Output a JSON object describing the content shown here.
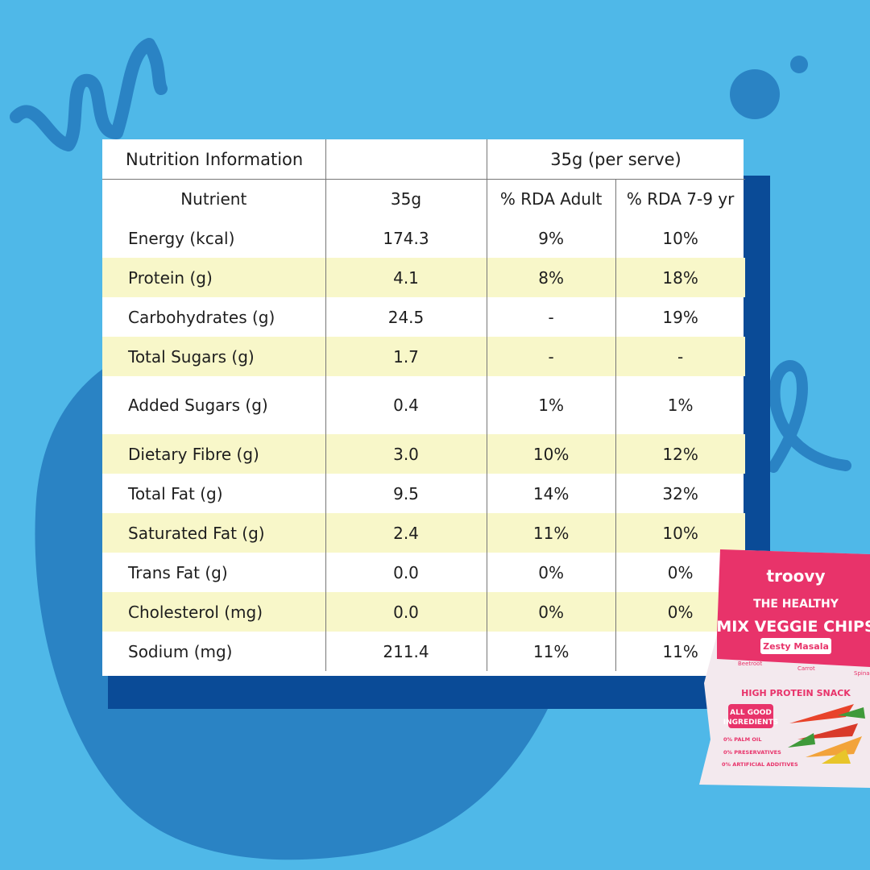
{
  "table": {
    "title": "Nutrition Information",
    "serve_header": "35g (per serve)",
    "columns": [
      "Nutrient",
      "35g",
      "% RDA Adult",
      "% RDA 7-9 yr"
    ],
    "rows": [
      {
        "nutrient": "Energy (kcal)",
        "amount": "174.3",
        "rda_adult": "9%",
        "rda_child": "10%"
      },
      {
        "nutrient": "Protein (g)",
        "amount": "4.1",
        "rda_adult": "8%",
        "rda_child": "18%"
      },
      {
        "nutrient": "Carbohydrates (g)",
        "amount": "24.5",
        "rda_adult": "-",
        "rda_child": "19%"
      },
      {
        "nutrient": "Total Sugars (g)",
        "amount": "1.7",
        "rda_adult": "-",
        "rda_child": "-"
      },
      {
        "nutrient": "Added Sugars (g)",
        "amount": "0.4",
        "rda_adult": "1%",
        "rda_child": "1%"
      },
      {
        "nutrient": "Dietary Fibre (g)",
        "amount": "3.0",
        "rda_adult": "10%",
        "rda_child": "12%"
      },
      {
        "nutrient": "Total Fat (g)",
        "amount": "9.5",
        "rda_adult": "14%",
        "rda_child": "32%"
      },
      {
        "nutrient": "Saturated Fat (g)",
        "amount": "2.4",
        "rda_adult": "11%",
        "rda_child": "10%"
      },
      {
        "nutrient": "Trans Fat (g)",
        "amount": "0.0",
        "rda_adult": "0%",
        "rda_child": "0%"
      },
      {
        "nutrient": "Cholesterol (mg)",
        "amount": "0.0",
        "rda_adult": "0%",
        "rda_child": "0%"
      },
      {
        "nutrient": "Sodium (mg)",
        "amount": "211.4",
        "rda_adult": "11%",
        "rda_child": "11%"
      }
    ]
  },
  "package": {
    "brand": "troovy",
    "tagline": "THE HEALTHY",
    "product": "MIX VEGGIE CHIPS",
    "flavour": "Zesty Masala",
    "veggies": [
      "Beetroot",
      "Carrot",
      "Spinach"
    ],
    "badge": "HIGH PROTEIN SNACK",
    "callout_1": "ALL GOOD",
    "callout_2": "INGREDIENTS",
    "claims": [
      "0% PALM OIL",
      "0% PRESERVATIVES",
      "0% ARTIFICIAL ADDITIVES"
    ]
  },
  "colors": {
    "background": "#4fb8e8",
    "blob": "#2a83c4",
    "shadow_box": "#0a4b97",
    "row_highlight": "#f8f7c9",
    "pack_pink": "#e8336a"
  }
}
